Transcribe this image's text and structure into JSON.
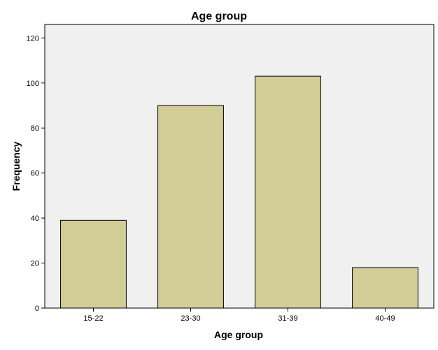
{
  "chart_data": {
    "type": "bar",
    "title": "Age group",
    "xlabel": "Age group",
    "ylabel": "Frequency",
    "categories": [
      "15-22",
      "23-30",
      "31-39",
      "40-49"
    ],
    "values": [
      39,
      90,
      103,
      18
    ],
    "ylim": [
      0,
      126
    ],
    "yticks": [
      0,
      20,
      40,
      60,
      80,
      100,
      120
    ],
    "grid": false,
    "colors": {
      "bar_fill": "#d3cd97",
      "plot_background": "#f0f0f0",
      "page_background": "#ffffff"
    }
  }
}
